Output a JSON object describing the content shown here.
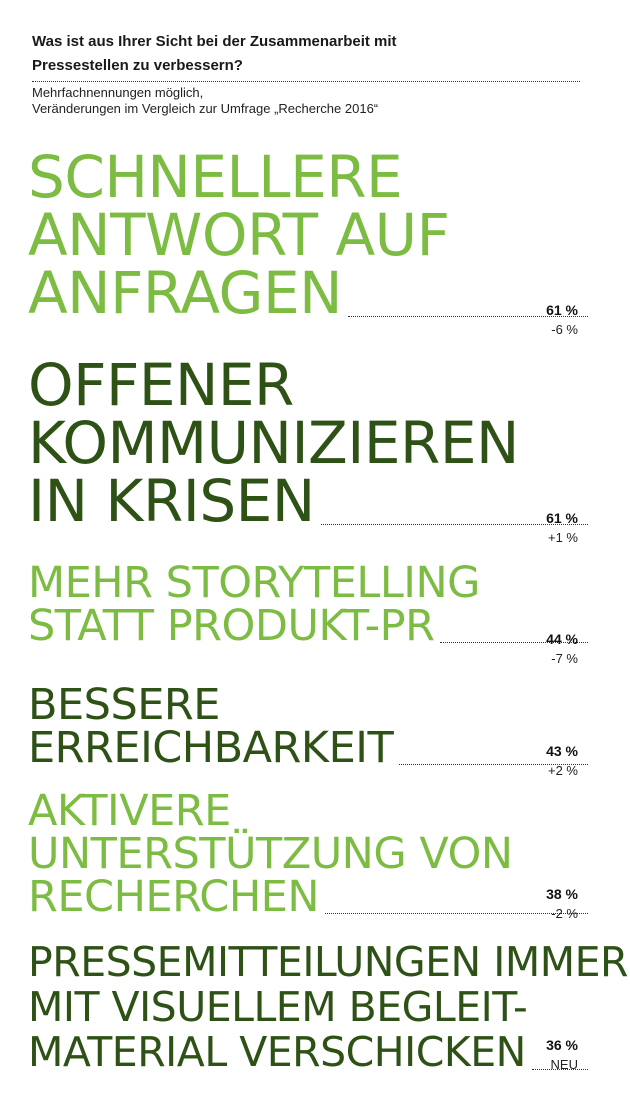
{
  "header": {
    "question_line1": "Was ist aus Ihrer Sicht bei der Zusammenarbeit mit",
    "question_line2": "Pressestellen zu verbessern?",
    "note_line1": "Mehrfachnennungen möglich,",
    "note_line2": "Veränderungen im Vergleich zur Umfrage „Recherche 2016“"
  },
  "colors": {
    "light_green": "#7dbc42",
    "dark_green": "#2e5116"
  },
  "chart_data": {
    "type": "table",
    "title": "Was ist aus Ihrer Sicht bei der Zusammenarbeit mit Pressestellen zu verbessern?",
    "items": [
      {
        "lines": [
          "SCHNELLERE",
          "ANTWORT AUF",
          "ANFRAGEN"
        ],
        "value": 61,
        "value_label": "61 %",
        "change": "-6 %",
        "color": "#7dbc42"
      },
      {
        "lines": [
          "OFFENER",
          "KOMMUNIZIEREN",
          "IN KRISEN"
        ],
        "value": 61,
        "value_label": "61 %",
        "change": "+1 %",
        "color": "#2e5116"
      },
      {
        "lines": [
          "MEHR STORYTELLING",
          "STATT PRODUKT-PR"
        ],
        "value": 44,
        "value_label": "44 %",
        "change": "-7 %",
        "color": "#7dbc42"
      },
      {
        "lines": [
          "BESSERE",
          "ERREICHBARKEIT"
        ],
        "value": 43,
        "value_label": "43 %",
        "change": "+2 %",
        "color": "#2e5116"
      },
      {
        "lines": [
          "AKTIVERE",
          "UNTERSTÜTZUNG VON",
          "RECHERCHEN"
        ],
        "value": 38,
        "value_label": "38 %",
        "change": "-2 %",
        "color": "#7dbc42"
      },
      {
        "lines": [
          "PRESSEMITTEILUNGEN IMMER",
          "MIT VISUELLEM BEGLEIT-",
          "MATERIAL VERSCHICKEN"
        ],
        "value": 36,
        "value_label": "36 %",
        "change": "NEU",
        "color": "#2e5116"
      }
    ]
  }
}
